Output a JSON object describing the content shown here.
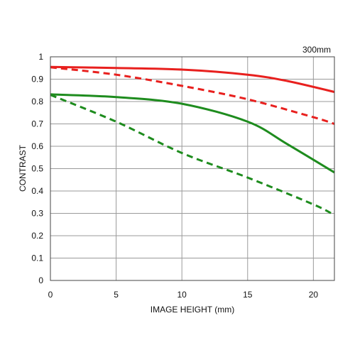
{
  "chart_data": {
    "type": "line",
    "title": "",
    "annotation": "300mm",
    "xlabel": "IMAGE HEIGHT (mm)",
    "ylabel": "CONTRAST",
    "xlim": [
      0,
      21.6
    ],
    "ylim": [
      0,
      1
    ],
    "xticks": [
      0,
      5,
      10,
      15,
      20
    ],
    "yticks": [
      0,
      0.1,
      0.2,
      0.3,
      0.4,
      0.5,
      0.6,
      0.7,
      0.8,
      0.9,
      1
    ],
    "ytick_labels": [
      "0",
      "0.1",
      "0.2",
      "0.3",
      "0.4",
      "0.5",
      "0.6",
      "0.7",
      "0.8",
      "0.9",
      "1"
    ],
    "grid": true,
    "series": [
      {
        "color": "#e8201e",
        "dash": "solid",
        "x": [
          0,
          5,
          10,
          15,
          18,
          21.6
        ],
        "values": [
          0.955,
          0.95,
          0.943,
          0.92,
          0.892,
          0.843
        ]
      },
      {
        "color": "#e8201e",
        "dash": "dashed",
        "x": [
          0,
          5,
          10,
          15,
          20,
          21.6
        ],
        "values": [
          0.953,
          0.92,
          0.87,
          0.81,
          0.73,
          0.7
        ]
      },
      {
        "color": "#1e8c1e",
        "dash": "solid",
        "x": [
          0,
          5,
          10,
          15,
          18,
          21.6
        ],
        "values": [
          0.832,
          0.82,
          0.79,
          0.71,
          0.61,
          0.483
        ]
      },
      {
        "color": "#1e8c1e",
        "dash": "dashed",
        "x": [
          0,
          5,
          10,
          15,
          20,
          21.6
        ],
        "values": [
          0.83,
          0.71,
          0.57,
          0.46,
          0.34,
          0.292
        ]
      }
    ]
  }
}
